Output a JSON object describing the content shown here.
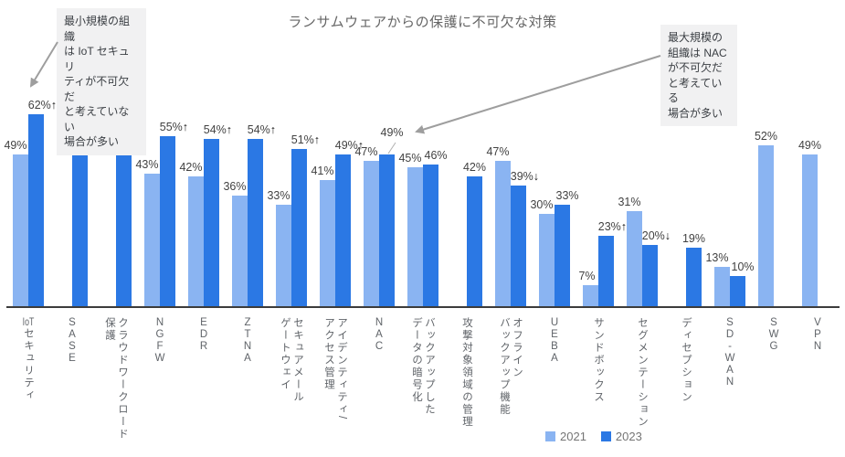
{
  "title": "ランサムウェアからの保護に不可欠な対策",
  "legend": {
    "items": [
      {
        "label": "2021",
        "color": "#8AB4F2"
      },
      {
        "label": "2023",
        "color": "#2B78E4"
      }
    ]
  },
  "annotations": {
    "left": {
      "text": "最小規模の組織\nは IoT セキュリ\nティが不可欠だ\nと考えていない\n場合が多い"
    },
    "right": {
      "text": "最大規模の\n組織は NAC\nが不可欠だ\nと考えている\n場合が多い"
    }
  },
  "chart_data": {
    "type": "bar",
    "title": "ランサムウェアからの保護に不可欠な対策",
    "series_names": [
      "2021",
      "2023"
    ],
    "colors": {
      "2021": "#8AB4F2",
      "2023": "#2B78E4"
    },
    "ylabel": "",
    "xlabel": "",
    "ylim": [
      0,
      70
    ],
    "grid": false,
    "legend_position": "bottom",
    "unit": "%",
    "categories": [
      {
        "label_lines": [
          "IoTセキュリティ"
        ],
        "v2021": 49,
        "v2023": 62,
        "trend": "up"
      },
      {
        "label_lines": [
          "SASE"
        ],
        "v2021": null,
        "v2023": 58,
        "trend": null
      },
      {
        "label_lines": [
          "クラウドワークロード",
          "保護"
        ],
        "v2021": null,
        "v2023": 56,
        "trend": null
      },
      {
        "label_lines": [
          "NGFW"
        ],
        "v2021": 43,
        "v2023": 55,
        "trend": "up"
      },
      {
        "label_lines": [
          "EDR"
        ],
        "v2021": 42,
        "v2023": 54,
        "trend": "up"
      },
      {
        "label_lines": [
          "ZTNA"
        ],
        "v2021": 36,
        "v2023": 54,
        "trend": "up"
      },
      {
        "label_lines": [
          "セキュアメール",
          "ゲートウェイ"
        ],
        "v2021": 33,
        "v2023": 51,
        "trend": "up"
      },
      {
        "label_lines": [
          "アイデンティティ/",
          "アクセス管理"
        ],
        "v2021": 41,
        "v2023": 49,
        "trend": "up"
      },
      {
        "label_lines": [
          "NAC"
        ],
        "v2021": 47,
        "v2023": 49,
        "trend": null,
        "callout_2023": true
      },
      {
        "label_lines": [
          "バックアップした",
          "データの暗号化"
        ],
        "v2021": 45,
        "v2023": 46,
        "trend": null
      },
      {
        "label_lines": [
          "攻撃対象領域の管理"
        ],
        "v2021": null,
        "v2023": 42,
        "trend": null
      },
      {
        "label_lines": [
          "オフライン",
          "バックアップ機能"
        ],
        "v2021": 47,
        "v2023": 39,
        "trend": "down"
      },
      {
        "label_lines": [
          "UEBA"
        ],
        "v2021": 30,
        "v2023": 33,
        "trend": null
      },
      {
        "label_lines": [
          "サンドボックス"
        ],
        "v2021": 7,
        "v2023": 23,
        "trend": "up"
      },
      {
        "label_lines": [
          "セグメンテーション"
        ],
        "v2021": 31,
        "v2023": 20,
        "trend": "down"
      },
      {
        "label_lines": [
          "ディセプション"
        ],
        "v2021": null,
        "v2023": 19,
        "trend": null
      },
      {
        "label_lines": [
          "SD-WAN"
        ],
        "v2021": 13,
        "v2023": 10,
        "trend": null
      },
      {
        "label_lines": [
          "SWG"
        ],
        "v2021": 52,
        "v2023": null,
        "trend": null
      },
      {
        "label_lines": [
          "VPN"
        ],
        "v2021": 49,
        "v2023": null,
        "trend": null
      }
    ]
  }
}
